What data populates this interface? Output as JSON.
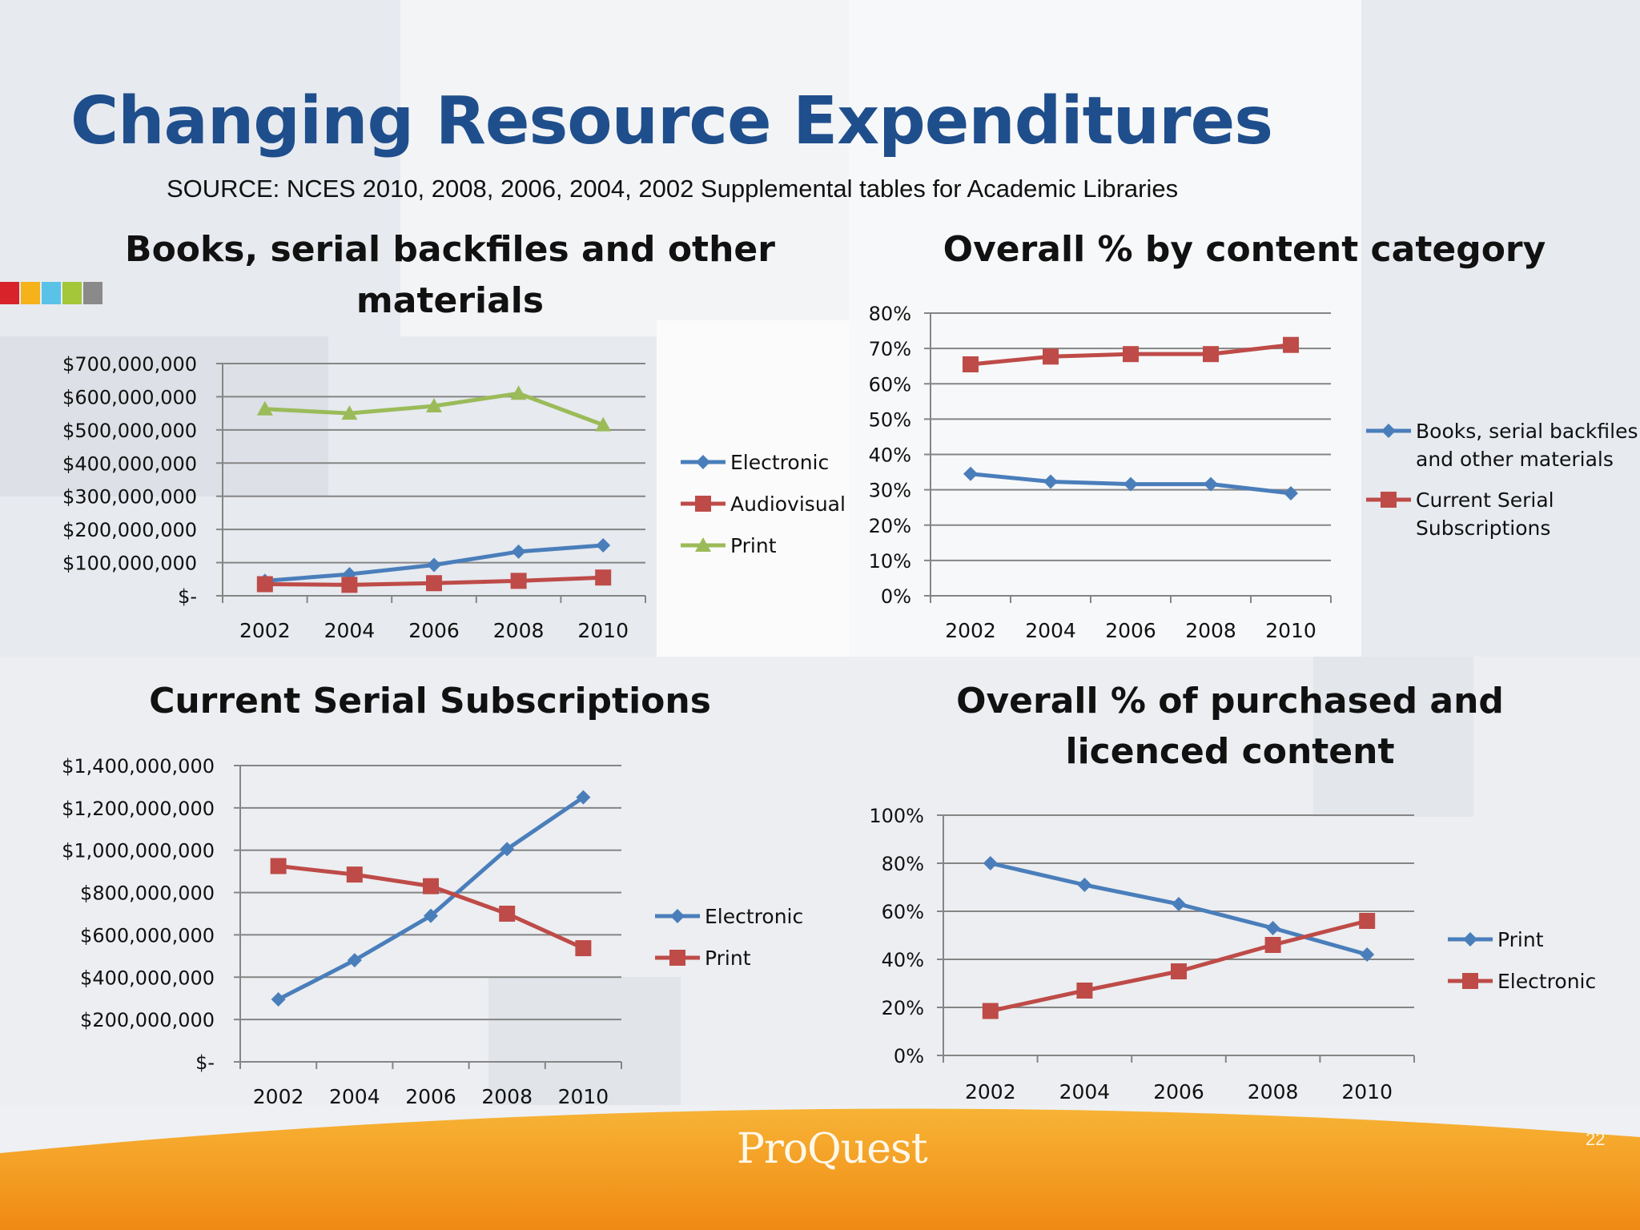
{
  "slide": {
    "title": "Changing Resource Expenditures",
    "source": "SOURCE: NCES 2010, 2008, 2006, 2004, 2002 Supplemental tables for Academic Libraries",
    "logo": "ProQuest",
    "page_number": "22"
  },
  "colors": {
    "title": "#1f4e8c",
    "blue": "#4a7ebb",
    "red": "#be4b48",
    "green": "#9bbb59",
    "orange": "#f39c1e",
    "deco": [
      "#d8232a",
      "#f6b21b",
      "#5bc2e7",
      "#a4c639",
      "#8a8a8a"
    ]
  },
  "chart_data": [
    {
      "type": "line",
      "title": "Books, serial backfiles and other materials",
      "x": [
        "2002",
        "2004",
        "2006",
        "2008",
        "2010"
      ],
      "y_ticks": [
        "$-",
        "$100,000,000",
        "$200,000,000",
        "$300,000,000",
        "$400,000,000",
        "$500,000,000",
        "$600,000,000",
        "$700,000,000"
      ],
      "ylim": [
        0,
        700000000
      ],
      "grid": true,
      "legend": "right",
      "series": [
        {
          "name": "Electronic",
          "color": "#4a7ebb",
          "marker": "diamond",
          "values": [
            45000000,
            65000000,
            93000000,
            133000000,
            152000000
          ]
        },
        {
          "name": "Audiovisual",
          "color": "#be4b48",
          "marker": "square",
          "values": [
            35000000,
            33000000,
            38000000,
            45000000,
            55000000
          ]
        },
        {
          "name": "Print",
          "color": "#9bbb59",
          "marker": "triangle",
          "values": [
            563000000,
            550000000,
            572000000,
            610000000,
            515000000
          ]
        }
      ]
    },
    {
      "type": "line",
      "title": "Overall % by content category",
      "x": [
        "2002",
        "2004",
        "2006",
        "2008",
        "2010"
      ],
      "y_ticks": [
        "0%",
        "10%",
        "20%",
        "30%",
        "40%",
        "50%",
        "60%",
        "70%",
        "80%"
      ],
      "ylim": [
        0,
        80
      ],
      "grid": true,
      "legend": "right",
      "series": [
        {
          "name": "Books, serial backfiles and other materials",
          "color": "#4a7ebb",
          "marker": "diamond",
          "values": [
            34.5,
            32.3,
            31.6,
            31.6,
            29
          ]
        },
        {
          "name": "Current Serial Subscriptions",
          "color": "#be4b48",
          "marker": "square",
          "values": [
            65.5,
            67.7,
            68.4,
            68.4,
            71
          ]
        }
      ]
    },
    {
      "type": "line",
      "title": "Current Serial Subscriptions",
      "x": [
        "2002",
        "2004",
        "2006",
        "2008",
        "2010"
      ],
      "y_ticks": [
        "$-",
        "$200,000,000",
        "$400,000,000",
        "$600,000,000",
        "$800,000,000",
        "$1,000,000,000",
        "$1,200,000,000",
        "$1,400,000,000"
      ],
      "ylim": [
        0,
        1400000000
      ],
      "grid": true,
      "legend": "right",
      "series": [
        {
          "name": "Electronic",
          "color": "#4a7ebb",
          "marker": "diamond",
          "values": [
            295000000,
            480000000,
            690000000,
            1005000000,
            1250000000
          ]
        },
        {
          "name": "Print",
          "color": "#be4b48",
          "marker": "square",
          "values": [
            925000000,
            885000000,
            830000000,
            700000000,
            537000000
          ]
        }
      ]
    },
    {
      "type": "line",
      "title": "Overall % of purchased and licenced content",
      "x": [
        "2002",
        "2004",
        "2006",
        "2008",
        "2010"
      ],
      "y_ticks": [
        "0%",
        "20%",
        "40%",
        "60%",
        "80%",
        "100%"
      ],
      "ylim": [
        0,
        100
      ],
      "grid": true,
      "legend": "right",
      "series": [
        {
          "name": "Print",
          "color": "#4a7ebb",
          "marker": "diamond",
          "values": [
            80,
            71,
            63,
            53,
            42
          ]
        },
        {
          "name": "Electronic",
          "color": "#be4b48",
          "marker": "square",
          "values": [
            18.5,
            27,
            35,
            46,
            56
          ]
        }
      ]
    }
  ]
}
